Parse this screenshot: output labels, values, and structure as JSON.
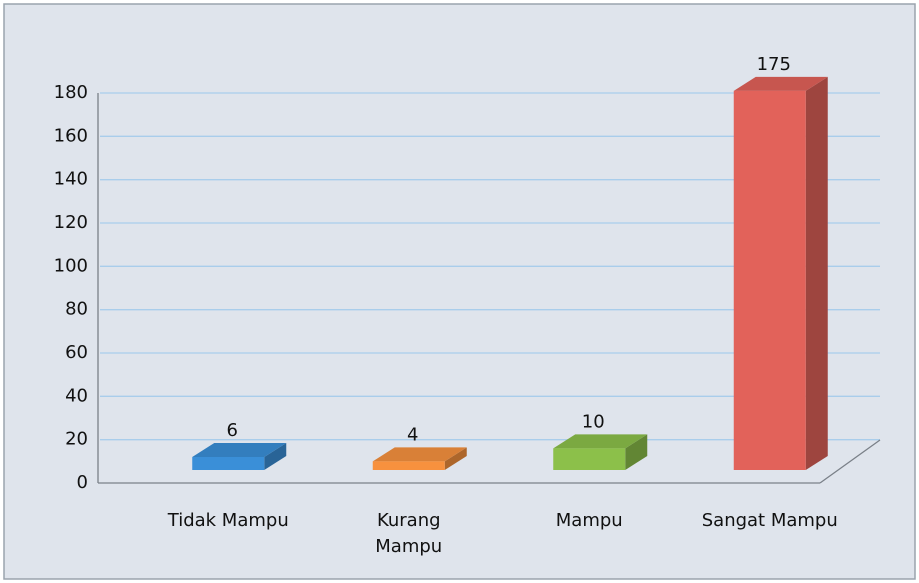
{
  "chart_data": {
    "type": "bar3d",
    "categories": [
      "Tidak Mampu",
      "Kurang Mampu",
      "Mampu",
      "Sangat Mampu"
    ],
    "values": [
      6,
      4,
      10,
      175
    ],
    "colors": [
      "#3a8fd8",
      "#f7913e",
      "#8cc04a",
      "#e2625a"
    ],
    "ylim": [
      0,
      180
    ],
    "yticks": [
      0,
      20,
      40,
      60,
      80,
      100,
      120,
      140,
      160,
      180
    ],
    "grid": true
  }
}
